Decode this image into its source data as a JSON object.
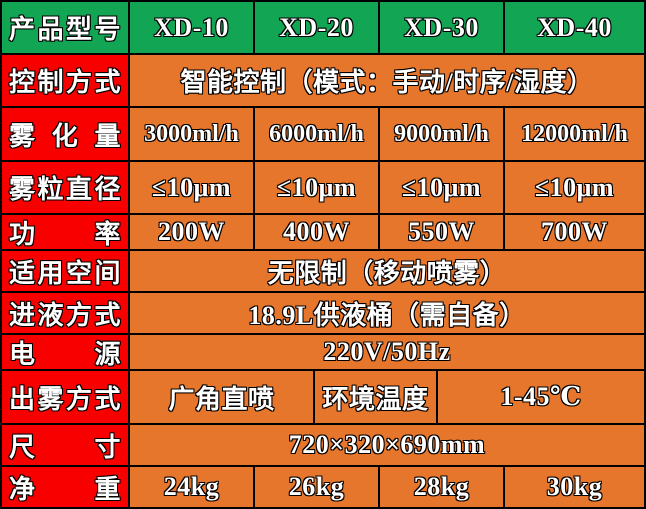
{
  "colors": {
    "header_green": "#12A553",
    "label_red": "#F80000",
    "body_orange": "#E7762D",
    "grid_border": "#000000",
    "text": "#FFFFFF"
  },
  "table": {
    "model_row": {
      "label": "产品型号",
      "values": [
        "XD-10",
        "XD-20",
        "XD-30",
        "XD-40"
      ]
    },
    "rows": [
      {
        "label": "控制方式",
        "value": "智能控制（模式：手动/时序/湿度）"
      },
      {
        "label": "雾化量",
        "values": [
          "3000ml/h",
          "6000ml/h",
          "9000ml/h",
          "12000ml/h"
        ]
      },
      {
        "label": "雾粒直径",
        "values": [
          "≤10μm",
          "≤10μm",
          "≤10μm",
          "≤10μm"
        ]
      },
      {
        "label": "功率",
        "values": [
          "200W",
          "400W",
          "550W",
          "700W"
        ]
      },
      {
        "label": "适用空间",
        "value": "无限制（移动喷雾）"
      },
      {
        "label": "进液方式",
        "value": "18.9L供液桶（需自备）"
      },
      {
        "label": "电源",
        "value": "220V/50Hz"
      },
      {
        "label": "出雾方式",
        "cells": [
          "广角直喷",
          "环境温度",
          "1-45℃"
        ]
      },
      {
        "label": "尺寸",
        "value": "720×320×690mm"
      },
      {
        "label": "净重",
        "values": [
          "24kg",
          "26kg",
          "28kg",
          "30kg"
        ]
      }
    ]
  }
}
